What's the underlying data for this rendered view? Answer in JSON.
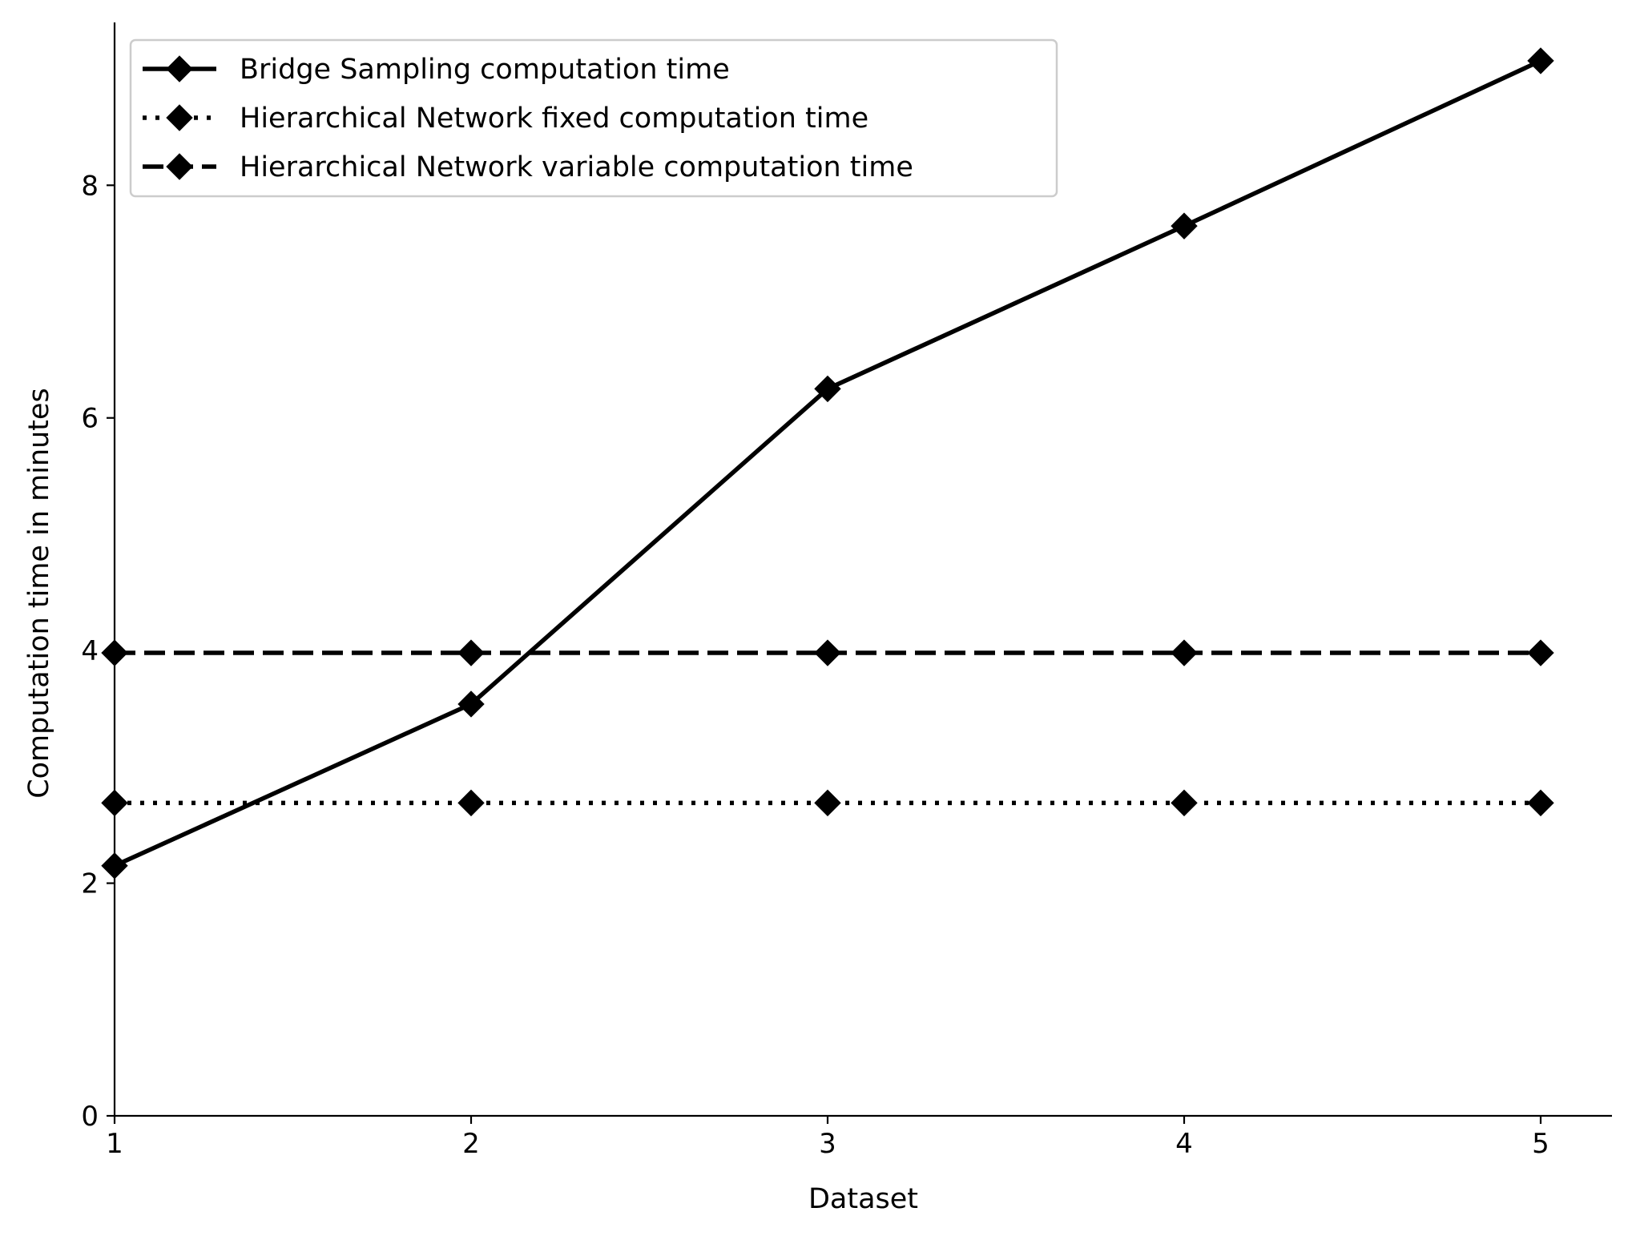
{
  "chart_data": {
    "type": "line",
    "title": "",
    "xlabel": "Dataset",
    "ylabel": "Computation time in minutes",
    "x": [
      1,
      2,
      3,
      4,
      5
    ],
    "xlim": [
      1,
      5.2
    ],
    "ylim": [
      0,
      9.4
    ],
    "xticks": [
      1,
      2,
      3,
      4,
      5
    ],
    "yticks": [
      0,
      2,
      4,
      6,
      8
    ],
    "grid": false,
    "legend_position": "top-left",
    "marker": "diamond",
    "series": [
      {
        "name": "Bridge Sampling computation time",
        "line_style": "solid",
        "color": "#000000",
        "values": [
          2.15,
          3.54,
          6.25,
          7.65,
          9.07
        ]
      },
      {
        "name": "Hierarchical Network fixed computation time",
        "line_style": "dotted",
        "color": "#000000",
        "values": [
          2.69,
          2.69,
          2.69,
          2.69,
          2.69
        ]
      },
      {
        "name": "Hierarchical Network variable computation time",
        "line_style": "dashed",
        "color": "#000000",
        "values": [
          3.98,
          3.98,
          3.98,
          3.98,
          3.98
        ]
      }
    ]
  }
}
